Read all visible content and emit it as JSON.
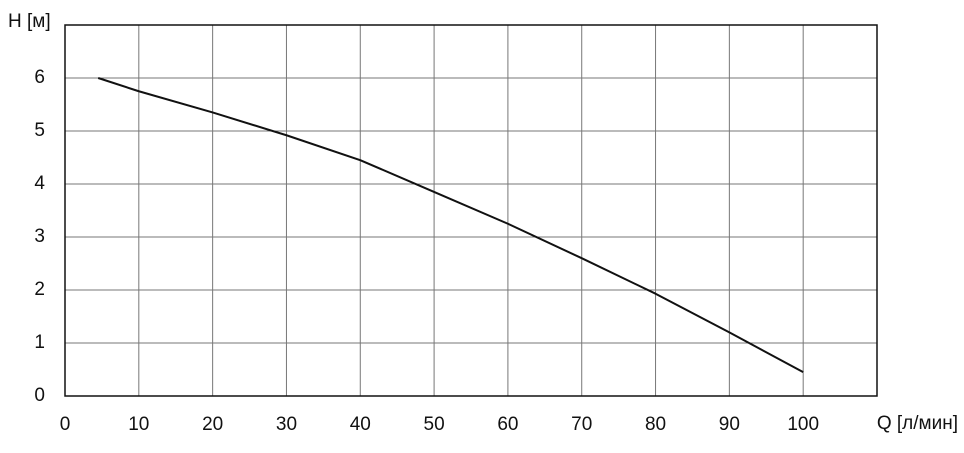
{
  "chart_data": {
    "type": "line",
    "y_label": "H [м]",
    "x_label": "Q [л/мин]",
    "x": [
      4.5,
      10,
      20,
      30,
      40,
      50,
      60,
      70,
      80,
      90,
      100
    ],
    "series": [
      {
        "color": "#111111",
        "values": [
          6,
          5.75,
          5.35,
          4.92,
          4.45,
          3.85,
          3.25,
          2.6,
          1.93,
          1.2,
          0.45
        ]
      }
    ],
    "xlim": [
      0,
      110
    ],
    "xticks": [
      0,
      10,
      20,
      30,
      40,
      50,
      60,
      70,
      80,
      90,
      100
    ],
    "ylim": [
      0,
      7
    ],
    "yticks": [
      0,
      1,
      2,
      3,
      4,
      5,
      6
    ],
    "grid": true
  }
}
